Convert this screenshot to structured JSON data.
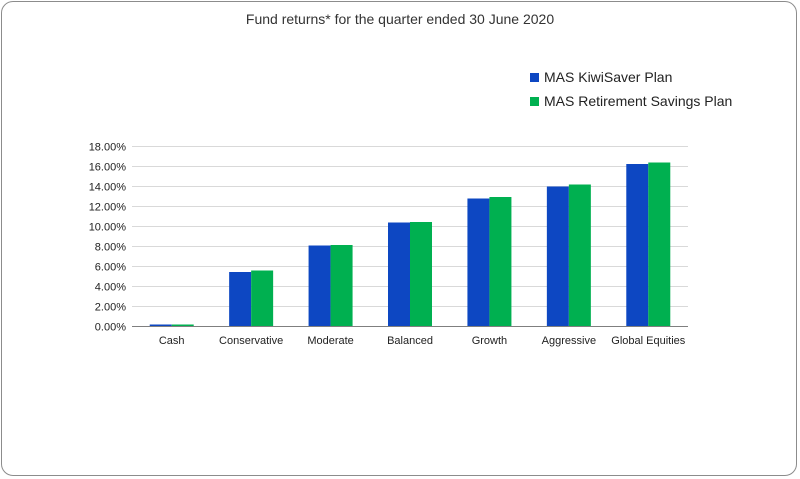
{
  "chart_data": {
    "type": "bar",
    "title": "Fund returns* for the quarter ended 30 June 2020",
    "categories": [
      "Cash",
      "Conservative",
      "Moderate",
      "Balanced",
      "Growth",
      "Aggressive",
      "Global Equities"
    ],
    "series": [
      {
        "name": "MAS KiwiSaver Plan",
        "color": "#0d47c2",
        "values": [
          0.15,
          5.4,
          8.05,
          10.35,
          12.75,
          13.95,
          16.2
        ]
      },
      {
        "name": "MAS Retirement Savings Plan",
        "color": "#00b050",
        "values": [
          0.15,
          5.55,
          8.1,
          10.4,
          12.9,
          14.15,
          16.35
        ]
      }
    ],
    "ylim": [
      0,
      18
    ],
    "yticks": [
      "0.00%",
      "2.00%",
      "4.00%",
      "6.00%",
      "8.00%",
      "10.00%",
      "12.00%",
      "14.00%",
      "16.00%",
      "18.00%"
    ],
    "xlabel": "",
    "ylabel": "",
    "grid": true,
    "legend_position": "top-right"
  }
}
